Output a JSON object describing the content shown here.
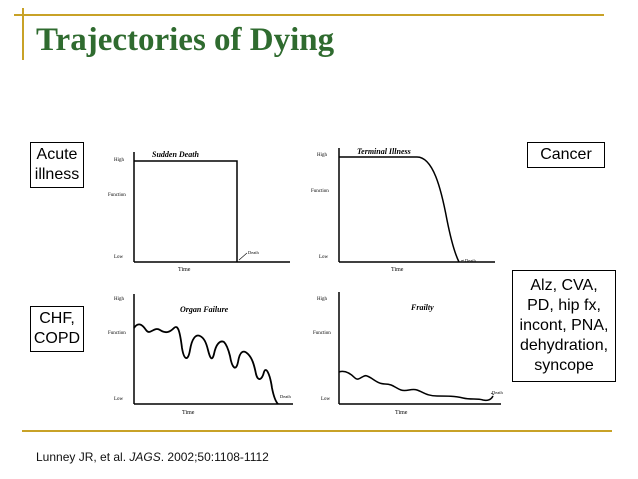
{
  "title": "Trajectories of Dying",
  "labels": {
    "acute": "Acute\nillness",
    "cancer": "Cancer",
    "chf": "CHF,\nCOPD",
    "frailty_causes": "Alz, CVA,\nPD, hip fx,\nincont, PNA,\ndehydration,\nsyncope"
  },
  "citation": {
    "authors": "Lunney JR, et al. ",
    "journal": "JAGS",
    "details": ". 2002;50:1108-1112"
  },
  "charts": {
    "sudden": {
      "title": "Sudden Death",
      "high": "High",
      "function": "Function",
      "low": "Low",
      "time": "Time",
      "death": "Death"
    },
    "terminal": {
      "title": "Terminal Illness",
      "high": "High",
      "function": "Function",
      "low": "Low",
      "time": "Time",
      "death": "Death"
    },
    "organ": {
      "title": "Organ Failure",
      "high": "High",
      "function": "Function",
      "low": "Low",
      "time": "Time",
      "death": "Death"
    },
    "frailty": {
      "title": "Frailty",
      "high": "High",
      "function": "Function",
      "low": "Low",
      "time": "Time",
      "death": "Death"
    }
  },
  "colors": {
    "accent_gold": "#c8a227",
    "title_green": "#2f6b2f"
  }
}
